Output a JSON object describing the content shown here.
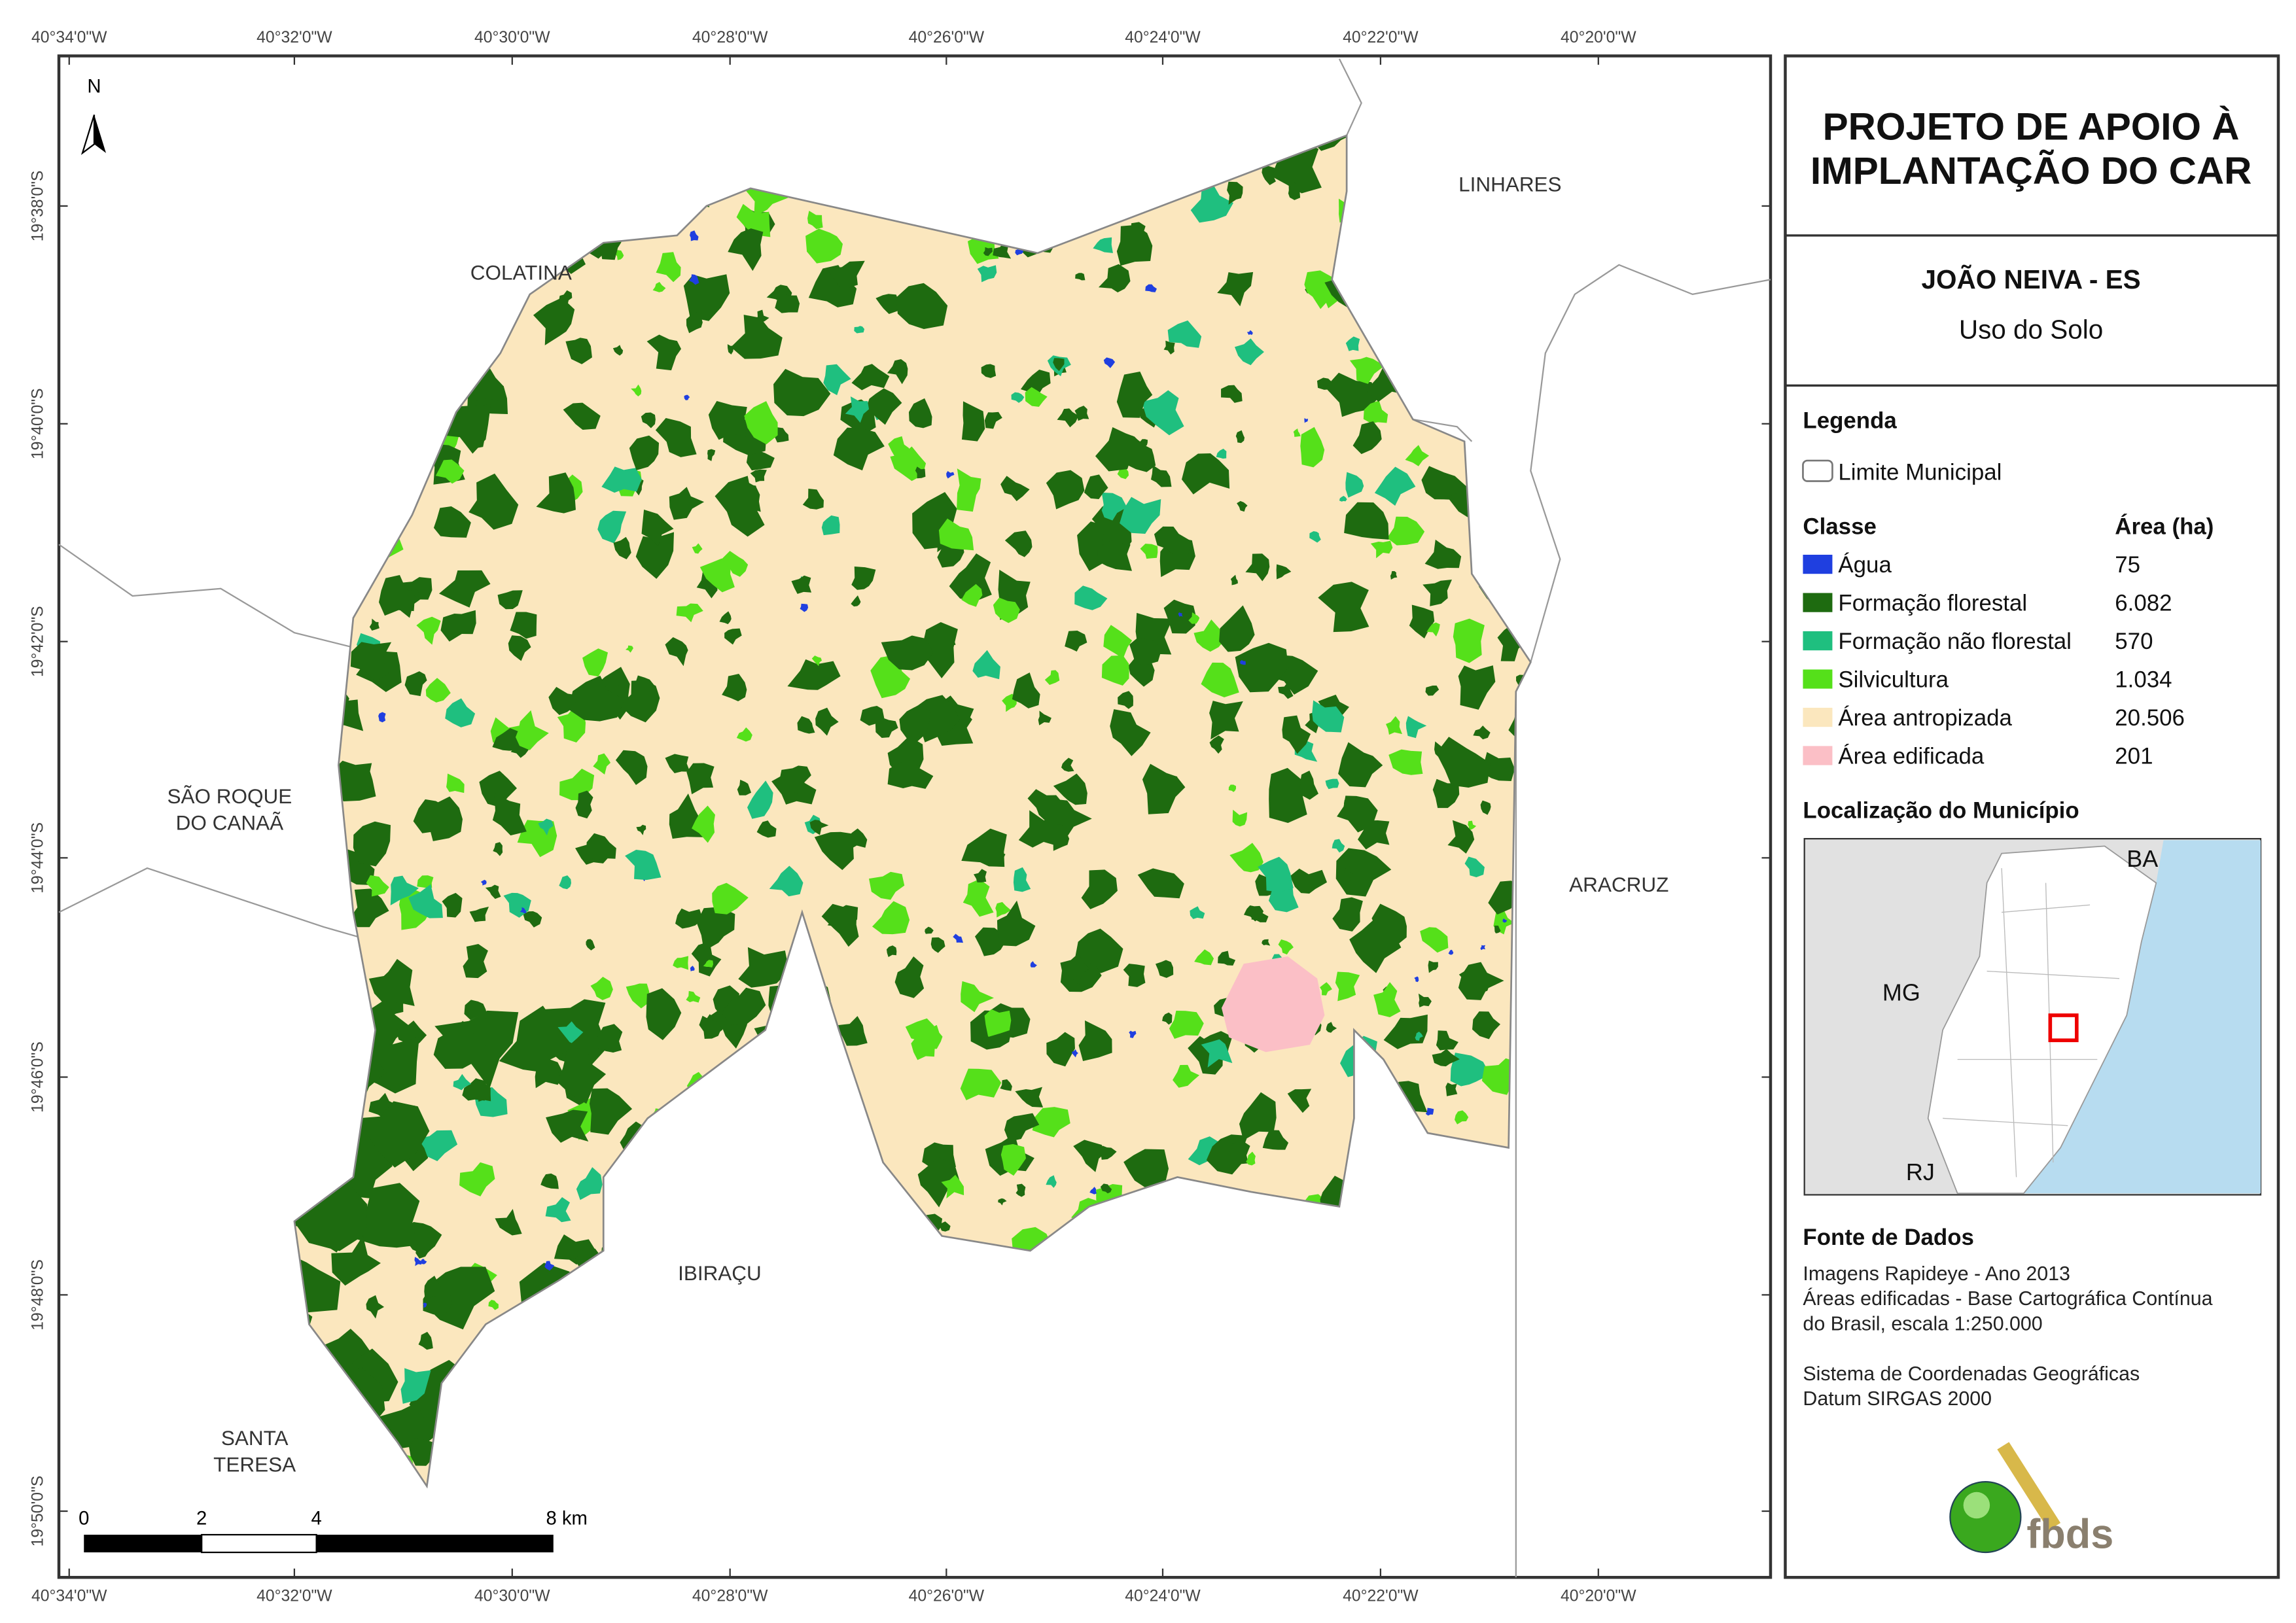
{
  "map": {
    "longitude_labels": [
      "40°34'0\"W",
      "40°32'0\"W",
      "40°30'0\"W",
      "40°28'0\"W",
      "40°26'0\"W",
      "40°24'0\"W",
      "40°22'0\"W",
      "40°20'0\"W"
    ],
    "latitude_labels": [
      "19°38'0\"S",
      "19°40'0\"S",
      "19°42'0\"S",
      "19°44'0\"S",
      "19°46'0\"S",
      "19°48'0\"S",
      "19°50'0\"S"
    ],
    "north": "N",
    "places": [
      {
        "lines": [
          "COLATINA"
        ]
      },
      {
        "lines": [
          "LINHARES"
        ]
      },
      {
        "lines": [
          "SÃO ROQUE",
          "DO CANAÃ"
        ]
      },
      {
        "lines": [
          "ARACRUZ"
        ]
      },
      {
        "lines": [
          "IBIRAÇU"
        ]
      },
      {
        "lines": [
          "SANTA",
          "TERESA"
        ]
      }
    ],
    "scale_bar": [
      "0",
      "2",
      "4",
      "8 km"
    ]
  },
  "title": [
    "PROJETO DE APOIO À",
    "IMPLANTAÇÃO DO CAR"
  ],
  "subtitle": {
    "municipality": "JOÃO NEIVA - ES",
    "theme": "Uso do Solo"
  },
  "legend": {
    "heading": "Legenda",
    "boundary": "Limite Municipal",
    "class_header": "Classe",
    "area_header": "Área (ha)",
    "classes": [
      {
        "name": "Água",
        "color": "#1f3fe0",
        "area": "75"
      },
      {
        "name": "Formação florestal",
        "color": "#1e6b10",
        "area": "6.082"
      },
      {
        "name": "Formação não florestal",
        "color": "#1fbf7f",
        "area": "570"
      },
      {
        "name": "Silvicultura",
        "color": "#55e01a",
        "area": "1.034"
      },
      {
        "name": "Área antropizada",
        "color": "#fbe7be",
        "area": "20.506"
      },
      {
        "name": "Área edificada",
        "color": "#fbbfc6",
        "area": "201"
      }
    ]
  },
  "location": {
    "heading": "Localização do Município",
    "labels": [
      "BA",
      "MG",
      "RJ"
    ]
  },
  "sources": {
    "heading": "Fonte de Dados",
    "lines": [
      "Imagens Rapideye - Ano 2013",
      "Áreas edificadas - Base Cartográfica Contínua",
      "do Brasil, escala 1:250.000",
      "",
      "Sistema de Coordenadas Geográficas",
      "Datum SIRGAS 2000"
    ]
  },
  "logo": "fbds"
}
